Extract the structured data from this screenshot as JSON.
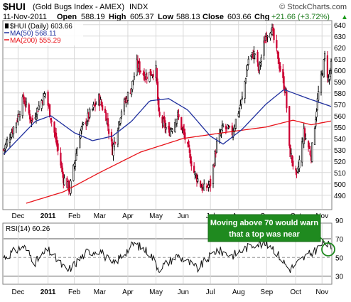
{
  "header": {
    "symbol": "$HUI",
    "name": "(Gold Bugs Index - AMEX)",
    "exchange": "INDX",
    "watermark": "© StockCharts.com",
    "date": "11-Nov-2011",
    "open_label": "Open",
    "open": "588.19",
    "high_label": "High",
    "high": "605.37",
    "low_label": "Low",
    "low": "588.13",
    "close_label": "Close",
    "close": "603.66",
    "chg_label": "Chg",
    "chg": "+21.66 (+3.72%)",
    "chg_arrow": "▲"
  },
  "legend": {
    "price": "$HUI (Daily) 603.66",
    "ma50": "MA(50) 568.11",
    "ma200": "MA(200) 555.29"
  },
  "rsi_legend": "RSI(14) 60.26",
  "annotation": "Moving above 70 would warn that a top was near",
  "colors": {
    "up": "#000000",
    "down": "#cc0033",
    "ma50": "#1f2f9e",
    "ma200": "#e8141b",
    "annotation_bg": "#1f8a1f",
    "annotation_text": "#ffffff",
    "grid": "#d8d8d8"
  },
  "chart_data": [
    {
      "type": "line",
      "style": "candlestick",
      "title": "$HUI (Gold Bugs Index - AMEX)",
      "x_range": [
        "2010-11-15",
        "2011-11-11"
      ],
      "ylim": [
        478,
        643
      ],
      "y_ticks": [
        490,
        500,
        510,
        520,
        530,
        540,
        550,
        560,
        570,
        580,
        590,
        600,
        610,
        620,
        630,
        640
      ],
      "x_tick_labels": [
        "Dec",
        "2011",
        "Feb",
        "Mar",
        "Apr",
        "May",
        "Jun",
        "Jul",
        "Aug",
        "Sep",
        "Oct",
        "Nov"
      ],
      "grid": true,
      "legend": "top-left",
      "price_anchors": [
        {
          "date": "2010-11-15",
          "close": 530
        },
        {
          "date": "2010-11-29",
          "close": 555
        },
        {
          "date": "2010-12-07",
          "close": 575
        },
        {
          "date": "2010-12-16",
          "close": 555
        },
        {
          "date": "2010-12-31",
          "close": 580
        },
        {
          "date": "2011-01-10",
          "close": 545
        },
        {
          "date": "2011-01-20",
          "close": 505
        },
        {
          "date": "2011-01-27",
          "close": 495
        },
        {
          "date": "2011-02-07",
          "close": 545
        },
        {
          "date": "2011-02-17",
          "close": 560
        },
        {
          "date": "2011-02-28",
          "close": 575
        },
        {
          "date": "2011-03-08",
          "close": 560
        },
        {
          "date": "2011-03-15",
          "close": 530
        },
        {
          "date": "2011-03-25",
          "close": 565
        },
        {
          "date": "2011-04-05",
          "close": 585
        },
        {
          "date": "2011-04-11",
          "close": 605
        },
        {
          "date": "2011-04-20",
          "close": 595
        },
        {
          "date": "2011-05-02",
          "close": 600
        },
        {
          "date": "2011-05-05",
          "close": 560
        },
        {
          "date": "2011-05-16",
          "close": 545
        },
        {
          "date": "2011-05-26",
          "close": 560
        },
        {
          "date": "2011-06-03",
          "close": 540
        },
        {
          "date": "2011-06-13",
          "close": 510
        },
        {
          "date": "2011-06-23",
          "close": 495
        },
        {
          "date": "2011-07-01",
          "close": 500
        },
        {
          "date": "2011-07-08",
          "close": 535
        },
        {
          "date": "2011-07-15",
          "close": 550
        },
        {
          "date": "2011-07-25",
          "close": 545
        },
        {
          "date": "2011-08-05",
          "close": 575
        },
        {
          "date": "2011-08-12",
          "close": 610
        },
        {
          "date": "2011-08-19",
          "close": 615
        },
        {
          "date": "2011-08-23",
          "close": 600
        },
        {
          "date": "2011-08-31",
          "close": 630
        },
        {
          "date": "2011-09-06",
          "close": 638
        },
        {
          "date": "2011-09-12",
          "close": 615
        },
        {
          "date": "2011-09-22",
          "close": 580
        },
        {
          "date": "2011-09-26",
          "close": 530
        },
        {
          "date": "2011-10-04",
          "close": 505
        },
        {
          "date": "2011-10-12",
          "close": 545
        },
        {
          "date": "2011-10-20",
          "close": 525
        },
        {
          "date": "2011-10-28",
          "close": 580
        },
        {
          "date": "2011-11-02",
          "close": 600
        },
        {
          "date": "2011-11-04",
          "close": 612
        },
        {
          "date": "2011-11-08",
          "close": 592
        },
        {
          "date": "2011-11-11",
          "close": 603.66
        }
      ],
      "series": [
        {
          "name": "MA(50)",
          "points": [
            {
              "date": "2010-11-15",
              "value": 526
            },
            {
              "date": "2010-12-20",
              "value": 555
            },
            {
              "date": "2011-01-06",
              "value": 560
            },
            {
              "date": "2011-02-01",
              "value": 545
            },
            {
              "date": "2011-02-21",
              "value": 538
            },
            {
              "date": "2011-03-15",
              "value": 542
            },
            {
              "date": "2011-04-05",
              "value": 555
            },
            {
              "date": "2011-04-25",
              "value": 573
            },
            {
              "date": "2011-05-16",
              "value": 575
            },
            {
              "date": "2011-06-06",
              "value": 565
            },
            {
              "date": "2011-07-01",
              "value": 542
            },
            {
              "date": "2011-07-15",
              "value": 535
            },
            {
              "date": "2011-08-05",
              "value": 548
            },
            {
              "date": "2011-08-31",
              "value": 570
            },
            {
              "date": "2011-09-20",
              "value": 583
            },
            {
              "date": "2011-10-17",
              "value": 575
            },
            {
              "date": "2011-11-11",
              "value": 568.11
            }
          ]
        },
        {
          "name": "MA(200)",
          "points": [
            {
              "date": "2010-12-10",
              "value": 483
            },
            {
              "date": "2011-01-20",
              "value": 493
            },
            {
              "date": "2011-03-01",
              "value": 510
            },
            {
              "date": "2011-04-15",
              "value": 528
            },
            {
              "date": "2011-06-01",
              "value": 540
            },
            {
              "date": "2011-07-15",
              "value": 545
            },
            {
              "date": "2011-08-31",
              "value": 550
            },
            {
              "date": "2011-09-30",
              "value": 556
            },
            {
              "date": "2011-10-20",
              "value": 552
            },
            {
              "date": "2011-11-11",
              "value": 555.29
            }
          ]
        }
      ]
    },
    {
      "type": "line",
      "title": "RSI(14)",
      "ylim": [
        22,
        86
      ],
      "y_ticks": [
        30,
        50,
        70,
        90
      ],
      "reference_lines": [
        30,
        50,
        70
      ],
      "x_tick_labels": [
        "Dec",
        "2011",
        "Feb",
        "Mar",
        "Apr",
        "May",
        "Jun",
        "Jul",
        "Aug",
        "Sep",
        "Oct",
        "Nov"
      ],
      "series": [
        {
          "name": "RSI(14)",
          "points": [
            {
              "date": "2010-11-15",
              "value": 50
            },
            {
              "date": "2010-12-07",
              "value": 62
            },
            {
              "date": "2010-12-20",
              "value": 45
            },
            {
              "date": "2011-01-03",
              "value": 58
            },
            {
              "date": "2011-01-24",
              "value": 35
            },
            {
              "date": "2011-02-14",
              "value": 55
            },
            {
              "date": "2011-03-01",
              "value": 58
            },
            {
              "date": "2011-03-15",
              "value": 42
            },
            {
              "date": "2011-04-08",
              "value": 65
            },
            {
              "date": "2011-04-25",
              "value": 55
            },
            {
              "date": "2011-05-05",
              "value": 38
            },
            {
              "date": "2011-05-26",
              "value": 52
            },
            {
              "date": "2011-06-17",
              "value": 38
            },
            {
              "date": "2011-07-08",
              "value": 58
            },
            {
              "date": "2011-07-25",
              "value": 52
            },
            {
              "date": "2011-08-19",
              "value": 65
            },
            {
              "date": "2011-09-06",
              "value": 63
            },
            {
              "date": "2011-09-26",
              "value": 37
            },
            {
              "date": "2011-10-10",
              "value": 48
            },
            {
              "date": "2011-10-24",
              "value": 57
            },
            {
              "date": "2011-11-04",
              "value": 67
            },
            {
              "date": "2011-11-11",
              "value": 60.26
            }
          ]
        }
      ]
    }
  ]
}
